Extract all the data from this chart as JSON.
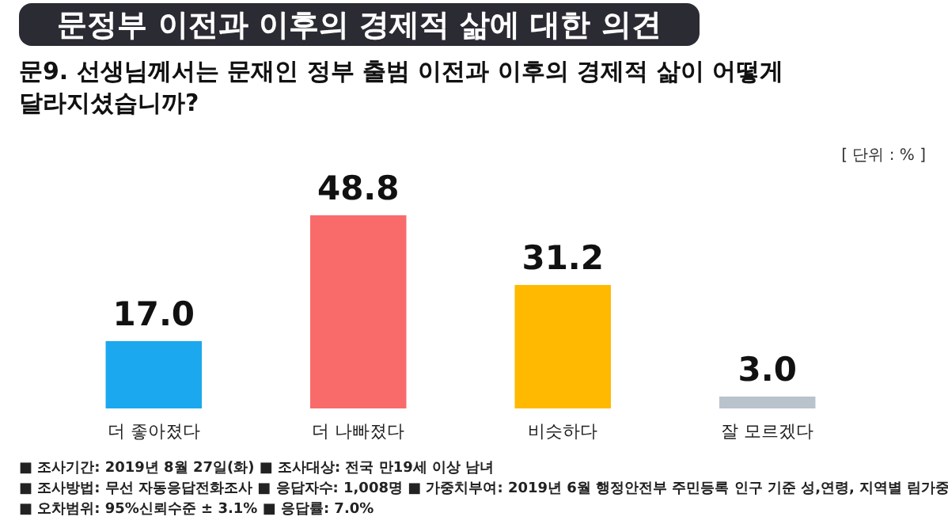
{
  "chart_data": {
    "type": "bar",
    "title": "문정부 이전과 이후의 경제적 삶에 대한 의견",
    "subtitle": "문9. 선생님께서는 문재인 정부 출범 이전과 이후의 경제적 삶이 어떻게 달라지셨습니까?",
    "categories": [
      "더 좋아졌다",
      "더 나빠졌다",
      "비슷하다",
      "잘 모르겠다"
    ],
    "values": [
      17.0,
      48.8,
      31.2,
      3.0
    ],
    "value_labels": [
      "17.0",
      "48.8",
      "31.2",
      "3.0"
    ],
    "colors": [
      "#1ba8ee",
      "#f96b6b",
      "#ffb900",
      "#b9c3cc"
    ],
    "annotations": [
      "[ 단위 : % ]",
      "■ 조사기간: 2019년 8월 27일(화)  ■ 조사대상: 전국 만19세 이상 남녀",
      "■ 조사방법: 무선 자동응답전화조사  ■ 응답자수: 1,008명 ■ 가중치부여: 2019년 6월 행정안전부 주민등록 인구 기준 성,연령, 지역별 림가중",
      "■ 오차범위: 95%신뢰수준 ± 3.1%  ■ 응답률: 7.0%"
    ]
  }
}
